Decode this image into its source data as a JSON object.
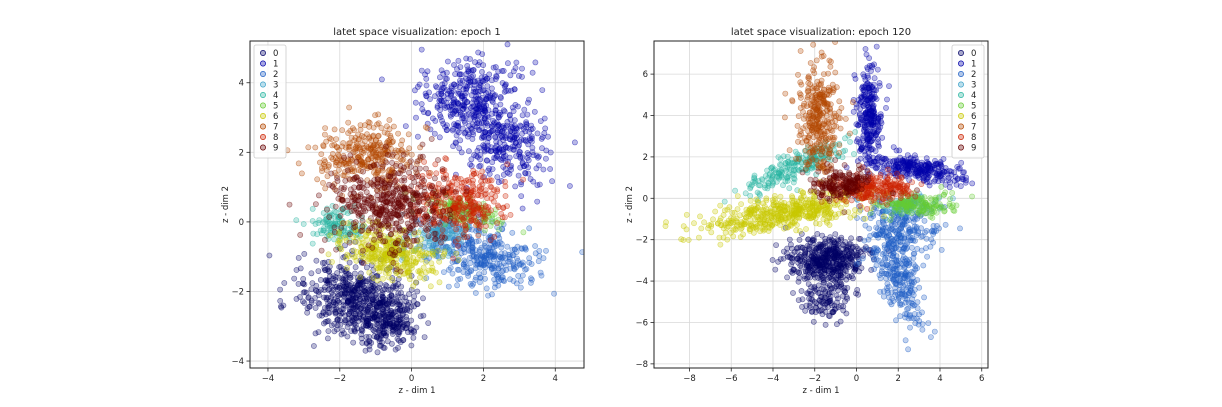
{
  "chart_data": [
    {
      "type": "scatter",
      "title": "latet space visualization: epoch 1",
      "xlabel": "z - dim 1",
      "ylabel": "z - dim 2",
      "xlim": [
        -4.5,
        4.8
      ],
      "ylim": [
        -4.2,
        5.2
      ],
      "xticks": [
        -4,
        -2,
        0,
        2,
        4
      ],
      "yticks": [
        -4,
        -2,
        0,
        2,
        4
      ],
      "grid": true,
      "legend": "top-left",
      "series": [
        {
          "name": "0",
          "color": "#000066",
          "clusters": [
            {
              "cx": -1.6,
              "cy": -2.2,
              "sx": 0.75,
              "sy": 0.55,
              "rot": -15,
              "n": 520
            },
            {
              "cx": -0.7,
              "cy": -2.9,
              "sx": 0.45,
              "sy": 0.35,
              "rot": 0,
              "n": 200
            }
          ]
        },
        {
          "name": "1",
          "color": "#0000aa",
          "clusters": [
            {
              "cx": 1.6,
              "cy": 3.5,
              "sx": 0.7,
              "sy": 0.55,
              "rot": 0,
              "n": 360
            },
            {
              "cx": 2.6,
              "cy": 2.2,
              "sx": 0.6,
              "sy": 0.55,
              "rot": -30,
              "n": 260
            }
          ]
        },
        {
          "name": "2",
          "color": "#1f5fc4",
          "clusters": [
            {
              "cx": 1.9,
              "cy": -0.9,
              "sx": 0.8,
              "sy": 0.45,
              "rot": -15,
              "n": 360
            }
          ]
        },
        {
          "name": "3",
          "color": "#3aa0c8",
          "clusters": [
            {
              "cx": 0.7,
              "cy": -0.4,
              "sx": 0.55,
              "sy": 0.3,
              "rot": 10,
              "n": 150
            }
          ]
        },
        {
          "name": "4",
          "color": "#27b5a0",
          "clusters": [
            {
              "cx": -2.1,
              "cy": -0.1,
              "sx": 0.35,
              "sy": 0.25,
              "rot": 0,
              "n": 110
            }
          ]
        },
        {
          "name": "5",
          "color": "#66cc33",
          "clusters": [
            {
              "cx": 1.5,
              "cy": 0.3,
              "sx": 0.6,
              "sy": 0.2,
              "rot": -15,
              "n": 130
            }
          ]
        },
        {
          "name": "6",
          "color": "#c8c800",
          "clusters": [
            {
              "cx": -0.6,
              "cy": -0.9,
              "sx": 0.7,
              "sy": 0.35,
              "rot": -20,
              "n": 320
            }
          ]
        },
        {
          "name": "7",
          "color": "#b34700",
          "clusters": [
            {
              "cx": -1.3,
              "cy": 1.9,
              "sx": 0.65,
              "sy": 0.5,
              "rot": 0,
              "n": 320
            }
          ]
        },
        {
          "name": "8",
          "color": "#cc2200",
          "clusters": [
            {
              "cx": 1.3,
              "cy": 0.6,
              "sx": 0.7,
              "sy": 0.45,
              "rot": 0,
              "n": 320
            }
          ]
        },
        {
          "name": "9",
          "color": "#660000",
          "clusters": [
            {
              "cx": -0.6,
              "cy": 0.5,
              "sx": 0.85,
              "sy": 0.65,
              "rot": 0,
              "n": 480
            }
          ]
        }
      ]
    },
    {
      "type": "scatter",
      "title": "latet space visualization: epoch 120",
      "xlabel": "z - dim 1",
      "ylabel": "z - dim 2",
      "xlim": [
        -9.7,
        6.3
      ],
      "ylim": [
        -8.2,
        7.6
      ],
      "xticks": [
        -8,
        -6,
        -4,
        -2,
        0,
        2,
        4,
        6
      ],
      "yticks": [
        -8,
        -6,
        -4,
        -2,
        0,
        2,
        4,
        6
      ],
      "grid": true,
      "legend": "top-right",
      "series": [
        {
          "name": "0",
          "color": "#000066",
          "clusters": [
            {
              "cx": -1.4,
              "cy": -3.0,
              "sx": 0.9,
              "sy": 0.55,
              "rot": 0,
              "n": 460
            },
            {
              "cx": -1.5,
              "cy": -4.8,
              "sx": 0.6,
              "sy": 0.6,
              "rot": 0,
              "n": 120
            }
          ]
        },
        {
          "name": "1",
          "color": "#0000aa",
          "clusters": [
            {
              "cx": 0.6,
              "cy": 3.8,
              "sx": 0.3,
              "sy": 1.3,
              "rot": 0,
              "n": 280
            },
            {
              "cx": 3.0,
              "cy": 1.4,
              "sx": 1.2,
              "sy": 0.3,
              "rot": -10,
              "n": 260
            }
          ]
        },
        {
          "name": "2",
          "color": "#1f5fc4",
          "clusters": [
            {
              "cx": 1.8,
              "cy": -3.2,
              "sx": 0.5,
              "sy": 1.6,
              "rot": 20,
              "n": 320
            },
            {
              "cx": 2.4,
              "cy": -1.5,
              "sx": 0.7,
              "sy": 0.6,
              "rot": 0,
              "n": 140
            }
          ]
        },
        {
          "name": "3",
          "color": "#3aa0c8",
          "clusters": [
            {
              "cx": 2.6,
              "cy": -0.3,
              "sx": 0.7,
              "sy": 0.25,
              "rot": 0,
              "n": 90
            }
          ]
        },
        {
          "name": "4",
          "color": "#27b5a0",
          "clusters": [
            {
              "cx": -3.0,
              "cy": 1.5,
              "sx": 1.3,
              "sy": 0.3,
              "rot": 25,
              "n": 200
            }
          ]
        },
        {
          "name": "5",
          "color": "#66cc33",
          "clusters": [
            {
              "cx": 3.0,
              "cy": -0.3,
              "sx": 0.9,
              "sy": 0.25,
              "rot": 0,
              "n": 160
            }
          ]
        },
        {
          "name": "6",
          "color": "#c8c800",
          "clusters": [
            {
              "cx": -3.5,
              "cy": -0.7,
              "sx": 2.0,
              "sy": 0.4,
              "rot": 10,
              "n": 480
            }
          ]
        },
        {
          "name": "7",
          "color": "#b34700",
          "clusters": [
            {
              "cx": -1.8,
              "cy": 3.8,
              "sx": 0.5,
              "sy": 1.3,
              "rot": 0,
              "n": 320
            }
          ]
        },
        {
          "name": "8",
          "color": "#cc2200",
          "clusters": [
            {
              "cx": 0.9,
              "cy": 0.5,
              "sx": 1.0,
              "sy": 0.35,
              "rot": 0,
              "n": 220
            }
          ]
        },
        {
          "name": "9",
          "color": "#660000",
          "clusters": [
            {
              "cx": -0.8,
              "cy": 0.7,
              "sx": 0.7,
              "sy": 0.4,
              "rot": 0,
              "n": 180
            }
          ]
        }
      ]
    }
  ]
}
